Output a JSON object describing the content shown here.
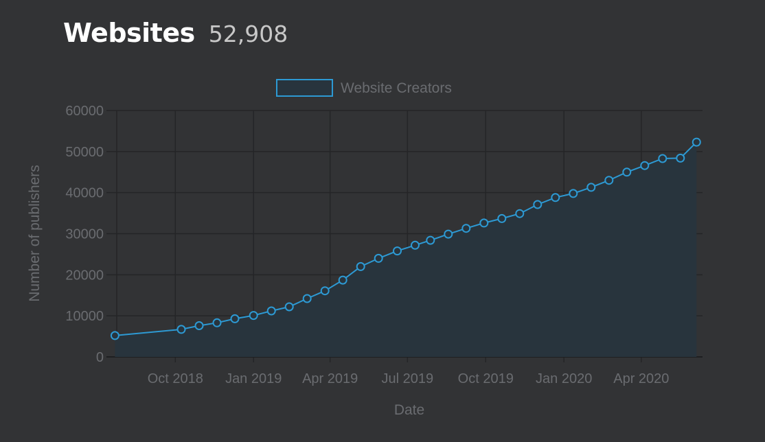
{
  "header": {
    "title": "Websites",
    "count": "52,908"
  },
  "colors": {
    "background": "#323335",
    "line": "#2d9ad4",
    "fill": "#28343d",
    "grid": "#242527"
  },
  "chart_data": {
    "type": "area",
    "xlabel": "Date",
    "ylabel": "Number of publishers",
    "ylim": [
      0,
      60000
    ],
    "yticks": [
      "0",
      "10000",
      "20000",
      "30000",
      "40000",
      "50000",
      "60000"
    ],
    "x_tick_labels": [
      "Oct 2018",
      "Jan 2019",
      "Apr 2019",
      "Jul 2019",
      "Oct 2019",
      "Jan 2020",
      "Apr 2020"
    ],
    "legend_position": "top-center",
    "series": [
      {
        "name": "Website Creators",
        "x": [
          "2018-07-22",
          "2018-10-08",
          "2018-10-29",
          "2018-11-19",
          "2018-12-10",
          "2019-01-01",
          "2019-01-22",
          "2019-02-12",
          "2019-03-05",
          "2019-03-26",
          "2019-04-16",
          "2019-05-07",
          "2019-05-28",
          "2019-06-19",
          "2019-07-10",
          "2019-07-28",
          "2019-08-18",
          "2019-09-08",
          "2019-09-29",
          "2019-10-20",
          "2019-11-10",
          "2019-12-01",
          "2019-12-22",
          "2020-01-12",
          "2020-02-02",
          "2020-02-23",
          "2020-03-15",
          "2020-04-05",
          "2020-04-26",
          "2020-05-17",
          "2020-06-05"
        ],
        "values": [
          5200,
          6700,
          7600,
          8300,
          9300,
          10100,
          11200,
          12200,
          14200,
          16100,
          18700,
          22000,
          24000,
          25800,
          27200,
          28400,
          29900,
          31300,
          32600,
          33700,
          34900,
          37100,
          38800,
          39800,
          41300,
          43000,
          45000,
          46600,
          48300,
          48400,
          52300
        ]
      }
    ]
  }
}
